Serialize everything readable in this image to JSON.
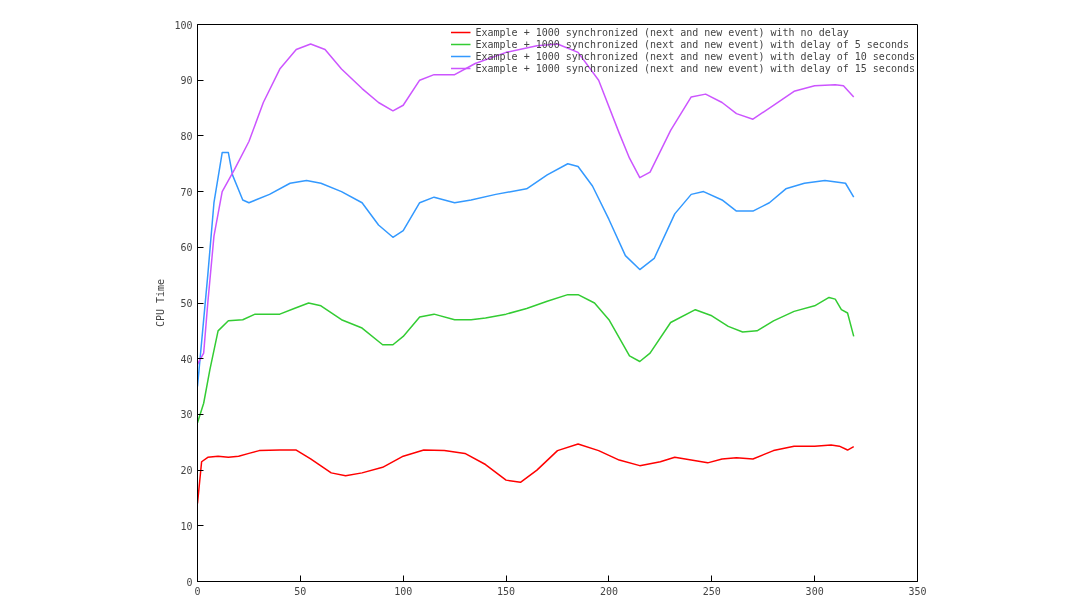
{
  "chart_data": {
    "type": "line",
    "ylabel": "CPU Time",
    "xlim": [
      0,
      350
    ],
    "xticks": [
      0,
      50,
      100,
      150,
      200,
      250,
      300,
      350
    ],
    "ylim": [
      0,
      100
    ],
    "yticks": [
      0,
      10,
      20,
      30,
      40,
      50,
      60,
      70,
      80,
      90,
      100
    ],
    "grid": false,
    "legend": "top right",
    "line_style": "solid",
    "series": [
      {
        "name": "Example + 1000 synchronized (next and new event) with no delay",
        "color": "#ff0000",
        "x": [
          0,
          2,
          5,
          10,
          15,
          20,
          25,
          30,
          40,
          48,
          55,
          65,
          72,
          80,
          90,
          100,
          110,
          120,
          130,
          140,
          150,
          157,
          165,
          175,
          185,
          195,
          205,
          215,
          225,
          232,
          240,
          248,
          255,
          262,
          270,
          280,
          290,
          300,
          308,
          312,
          316,
          319
        ],
        "values": [
          14,
          21.5,
          22.3,
          22.5,
          22.3,
          22.5,
          23,
          23.5,
          23.6,
          23.6,
          22,
          19.5,
          19,
          19.5,
          20.5,
          22.5,
          23.6,
          23.5,
          23,
          21,
          18.2,
          17.8,
          20,
          23.5,
          24.7,
          23.5,
          21.8,
          20.8,
          21.5,
          22.3,
          21.8,
          21.3,
          22,
          22.2,
          22,
          23.5,
          24.3,
          24.3,
          24.5,
          24.3,
          23.6,
          24.2
        ]
      },
      {
        "name": "Example + 1000 synchronized (next and new event) with delay of 5 seconds",
        "color": "#33cc33",
        "x": [
          0,
          3,
          6,
          10,
          15,
          22,
          28,
          40,
          47,
          54,
          60,
          70,
          80,
          90,
          95,
          100,
          108,
          115,
          125,
          133,
          140,
          150,
          160,
          170,
          180,
          185,
          193,
          200,
          210,
          215,
          220,
          230,
          242,
          250,
          258,
          265,
          272,
          280,
          290,
          300,
          307,
          310,
          313,
          316,
          319
        ],
        "values": [
          28.5,
          32,
          38,
          45,
          46.8,
          47,
          48,
          48,
          49,
          50,
          49.5,
          47,
          45.5,
          42.5,
          42.5,
          44,
          47.5,
          48,
          47,
          47,
          47.3,
          48,
          49,
          50.3,
          51.5,
          51.5,
          50,
          47,
          40.5,
          39.5,
          41,
          46.5,
          48.8,
          47.7,
          45.8,
          44.8,
          45,
          46.8,
          48.5,
          49.5,
          51,
          50.7,
          48.8,
          48.2,
          44
        ]
      },
      {
        "name": "Example + 1000 synchronized (next and new event) with delay of 10 seconds",
        "color": "#3399ff",
        "x": [
          0,
          5,
          8,
          12,
          15,
          17,
          22,
          25,
          35,
          45,
          53,
          60,
          70,
          80,
          88,
          95,
          100,
          108,
          115,
          125,
          133,
          145,
          160,
          170,
          180,
          185,
          192,
          200,
          208,
          215,
          222,
          232,
          240,
          246,
          255,
          262,
          270,
          278,
          286,
          295,
          305,
          315,
          319
        ],
        "values": [
          35,
          55,
          68,
          77,
          77,
          73,
          68.5,
          68,
          69.5,
          71.5,
          72,
          71.5,
          70,
          68,
          64,
          61.8,
          63,
          68,
          69,
          68,
          68.5,
          69.5,
          70.5,
          73,
          75,
          74.5,
          71,
          65,
          58.5,
          56,
          58,
          66,
          69.5,
          70,
          68.5,
          66.5,
          66.5,
          68,
          70.5,
          71.5,
          72,
          71.5,
          69
        ]
      },
      {
        "name": "Example + 1000 synchronized (next and new event) with delay of 15 seconds",
        "color": "#cc55ff",
        "x": [
          0,
          3,
          5,
          8,
          12,
          18,
          25,
          32,
          40,
          48,
          55,
          62,
          70,
          80,
          88,
          95,
          100,
          108,
          115,
          125,
          135,
          150,
          165,
          175,
          185,
          195,
          205,
          210,
          215,
          220,
          230,
          240,
          247,
          255,
          262,
          270,
          280,
          290,
          300,
          310,
          314,
          319
        ],
        "values": [
          39,
          41,
          50,
          62,
          70,
          74,
          79,
          86,
          92,
          95.5,
          96.5,
          95.5,
          92,
          88.5,
          86,
          84.5,
          85.5,
          90,
          91,
          91,
          93,
          95,
          96.2,
          96.5,
          95,
          90,
          80.5,
          76,
          72.5,
          73.5,
          81,
          87,
          87.5,
          86,
          84,
          83,
          85.5,
          88,
          89,
          89.2,
          89,
          87
        ]
      }
    ]
  }
}
